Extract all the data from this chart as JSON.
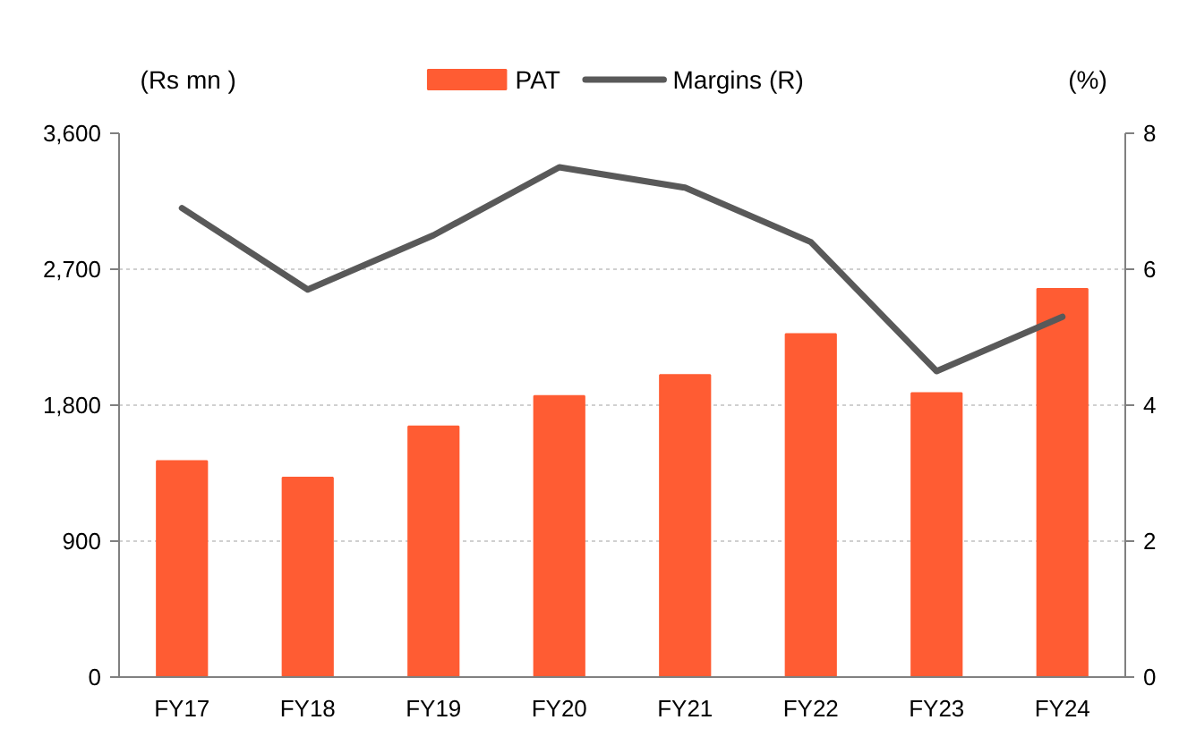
{
  "chart_data": {
    "type": "bar",
    "ylabel": "(Rs mn )",
    "y2label": "(%)",
    "categories": [
      "FY17",
      "FY18",
      "FY19",
      "FY20",
      "FY21",
      "FY22",
      "FY23",
      "FY24"
    ],
    "series": [
      {
        "name": "PAT",
        "color": "#ff5c33",
        "values": [
          1430,
          1320,
          1660,
          1860,
          2000,
          2270,
          1880,
          2570
        ]
      },
      {
        "name": "Margins (R)",
        "type": "line",
        "axis": "y2",
        "color": "#595959",
        "values": [
          6.9,
          5.7,
          6.5,
          7.5,
          7.2,
          6.4,
          4.5,
          5.3
        ]
      }
    ],
    "ylim": [
      0,
      3600
    ],
    "yticks": [
      0,
      {
        "value": 900,
        "label": "900"
      },
      {
        "value": 1800,
        "label": "1,800"
      },
      {
        "value": 2700,
        "label": "2,700"
      },
      {
        "value": 3600,
        "label": "3,600"
      }
    ],
    "y2lim": [
      0,
      8
    ],
    "y2ticks": [
      0,
      2,
      4,
      6,
      8
    ],
    "grid": "y",
    "legend": "top"
  }
}
